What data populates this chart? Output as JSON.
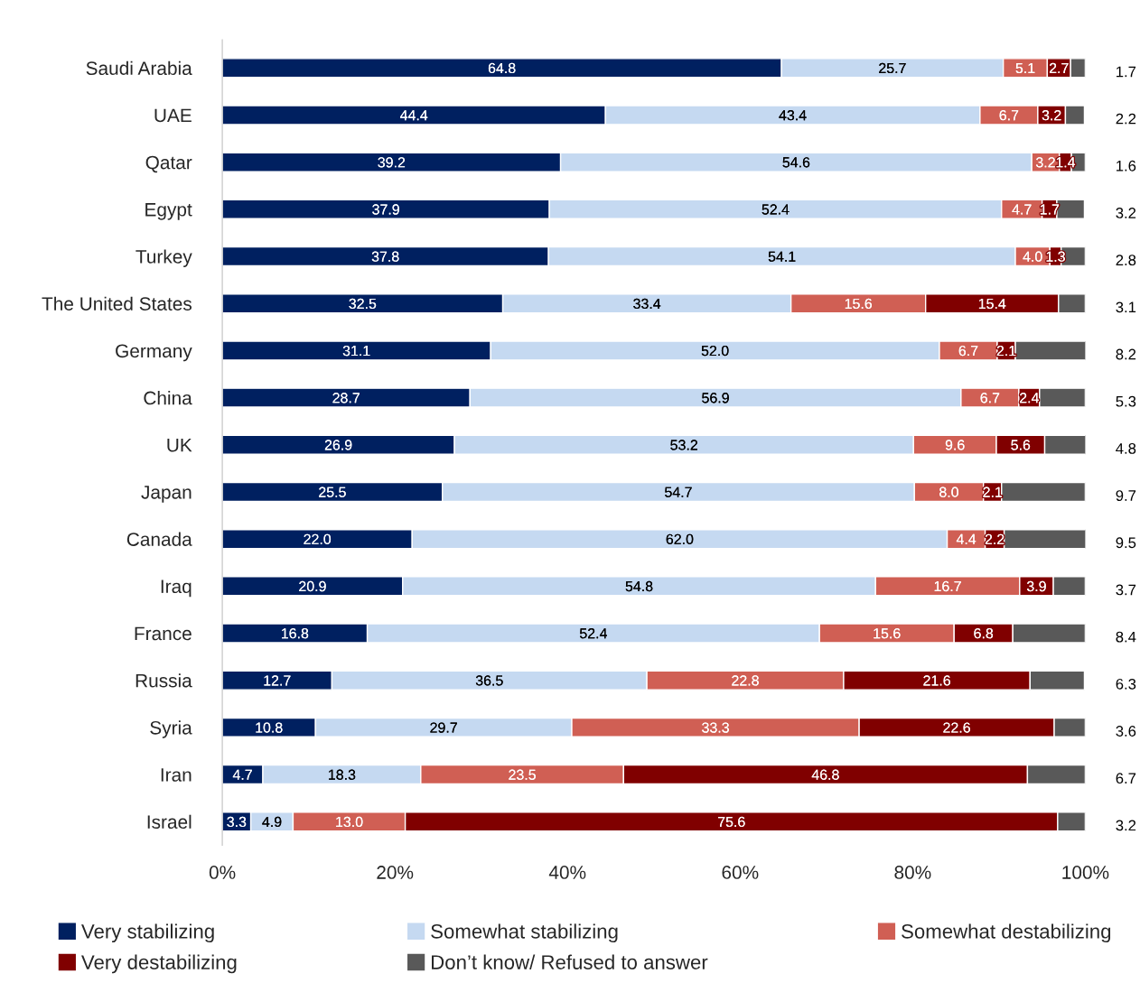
{
  "chart_data": {
    "type": "bar",
    "orientation": "horizontal",
    "stacked": true,
    "data_labels": true,
    "legend": "bottom",
    "grid": false,
    "categories": [
      "Saudi Arabia",
      "UAE",
      "Qatar",
      "Egypt",
      "Turkey",
      "The United States",
      "Germany",
      "China",
      "UK",
      "Japan",
      "Canada",
      "Iraq",
      "France",
      "Russia",
      "Syria",
      "Iran",
      "Israel"
    ],
    "xlim": [
      0,
      100
    ],
    "xticks": [
      {
        "value": 0,
        "label": "0%"
      },
      {
        "value": 20,
        "label": "20%"
      },
      {
        "value": 40,
        "label": "40%"
      },
      {
        "value": 60,
        "label": "60%"
      },
      {
        "value": 80,
        "label": "80%"
      },
      {
        "value": 100,
        "label": "100%"
      }
    ],
    "series": [
      {
        "name": "Very stabilizing",
        "color": "#002060",
        "values": [
          64.8,
          44.4,
          39.2,
          37.9,
          37.8,
          32.5,
          31.1,
          28.7,
          26.9,
          25.5,
          22.0,
          20.9,
          16.8,
          12.7,
          10.8,
          4.7,
          3.3
        ],
        "value_labels": [
          "64.8",
          "44.4",
          "39.2",
          "37.9",
          "37.8",
          "32.5",
          "31.1",
          "28.7",
          "26.9",
          "25.5",
          "22.0",
          "20.9",
          "16.8",
          "12.7",
          "10.8",
          "4.7",
          "3.3"
        ]
      },
      {
        "name": "Somewhat stabilizing",
        "color": "#c5d9f1",
        "values": [
          25.7,
          43.4,
          54.6,
          52.4,
          54.1,
          33.4,
          52.0,
          56.9,
          53.2,
          54.7,
          62.0,
          54.8,
          52.4,
          36.5,
          29.7,
          18.3,
          4.9
        ],
        "value_labels": [
          "25.7",
          "43.4",
          "54.6",
          "52.4",
          "54.1",
          "33.4",
          "52.0",
          "56.9",
          "53.2",
          "54.7",
          "62.0",
          "54.8",
          "52.4",
          "36.5",
          "29.7",
          "18.3",
          "4.9"
        ]
      },
      {
        "name": "Somewhat destabilizing",
        "color": "#d05f54",
        "values": [
          5.1,
          6.7,
          3.2,
          4.7,
          4.0,
          15.6,
          6.7,
          6.7,
          9.6,
          8.0,
          4.4,
          16.7,
          15.6,
          22.8,
          33.3,
          23.5,
          13.0
        ],
        "value_labels": [
          "5.1",
          "6.7",
          "3.2",
          "4.7",
          "4.0",
          "15.6",
          "6.7",
          "6.7",
          "9.6",
          "8.0",
          "4.4",
          "16.7",
          "15.6",
          "22.8",
          "33.3",
          "23.5",
          "13.0"
        ]
      },
      {
        "name": "Very destabilizing",
        "color": "#800000",
        "values": [
          2.7,
          3.2,
          1.4,
          1.7,
          1.3,
          15.4,
          2.1,
          2.4,
          5.6,
          2.1,
          2.2,
          3.9,
          6.8,
          21.6,
          22.6,
          46.8,
          75.6
        ],
        "value_labels": [
          "2.7",
          "3.2",
          "1.4",
          "1.7",
          "1.3",
          "15.4",
          "2.1",
          "2.4",
          "5.6",
          "2.1",
          "2.2",
          "3.9",
          "6.8",
          "21.6",
          "22.6",
          "46.8",
          "75.6"
        ]
      },
      {
        "name": "Don’t know/ Refused to answer",
        "color": "#595959",
        "values": [
          1.7,
          2.2,
          1.6,
          3.2,
          2.8,
          3.1,
          8.2,
          5.3,
          4.8,
          9.7,
          9.5,
          3.7,
          8.4,
          6.3,
          3.6,
          6.7,
          3.2
        ],
        "value_labels": [
          "1.7",
          "2.2",
          "1.6",
          "3.2",
          "2.8",
          "3.1",
          "8.2",
          "5.3",
          "4.8",
          "9.7",
          "9.5",
          "3.7",
          "8.4",
          "6.3",
          "3.6",
          "6.7",
          "3.2"
        ]
      }
    ]
  }
}
